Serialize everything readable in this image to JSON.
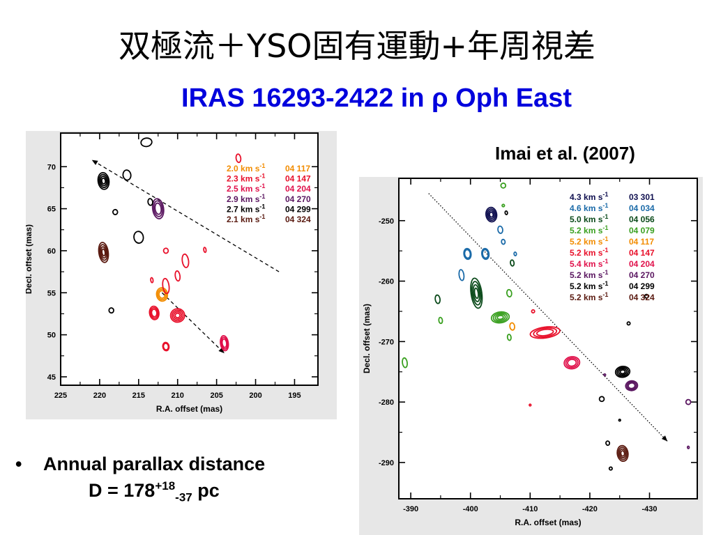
{
  "slide": {
    "title": "双極流＋YSO固有運動+年周視差",
    "subtitle": "IRAS 16293-2422 in ρ Oph East",
    "reference": "Imai et al. (2007)",
    "bullet_text": "Annual parallax distance",
    "formula": {
      "prefix": "D = 178",
      "sup": "+18",
      "sub": "-37",
      "suffix": " pc"
    },
    "bullet_symbol": "•"
  },
  "chart_data": [
    {
      "type": "scatter",
      "xlabel": "R.A. offset (mas)",
      "ylabel": "Decl. offset (mas)",
      "xlim": [
        225,
        192
      ],
      "ylim": [
        44,
        74
      ],
      "xticks": [
        225,
        220,
        215,
        210,
        205,
        200,
        195
      ],
      "yticks": [
        45,
        50,
        55,
        60,
        65,
        70
      ],
      "legend": [
        {
          "velocity": "2.0 km s",
          "sup": "-1",
          "id": "04 117",
          "color": "#f28c00"
        },
        {
          "velocity": "2.3 km s",
          "sup": "-1",
          "id": "04 147",
          "color": "#e8102a"
        },
        {
          "velocity": "2.5 km s",
          "sup": "-1",
          "id": "04 204",
          "color": "#e0104a"
        },
        {
          "velocity": "2.9 km s",
          "sup": "-1",
          "id": "04 270",
          "color": "#5a1660"
        },
        {
          "velocity": "2.7 km s",
          "sup": "-1",
          "id": "04 299",
          "color": "#000000"
        },
        {
          "velocity": "2.1 km s",
          "sup": "-1",
          "id": "04 324",
          "color": "#5a1a10"
        }
      ],
      "features": [
        {
          "x": 214,
          "y": 72.9,
          "color": "#000000",
          "rx": 0.7,
          "ry": 0.5,
          "n": 1
        },
        {
          "x": 219.5,
          "y": 68.3,
          "color": "#000000",
          "rx": 0.7,
          "ry": 1.0,
          "n": 4
        },
        {
          "x": 216.5,
          "y": 69.0,
          "color": "#000000",
          "rx": 0.5,
          "ry": 0.6,
          "n": 1
        },
        {
          "x": 218.0,
          "y": 64.6,
          "color": "#000000",
          "rx": 0.3,
          "ry": 0.3,
          "n": 1
        },
        {
          "x": 215.0,
          "y": 61.6,
          "color": "#000000",
          "rx": 0.6,
          "ry": 0.7,
          "n": 1
        },
        {
          "x": 218.5,
          "y": 52.9,
          "color": "#000000",
          "rx": 0.3,
          "ry": 0.3,
          "n": 1
        },
        {
          "x": 212.5,
          "y": 65.0,
          "color": "#5a1660",
          "rx": 0.7,
          "ry": 1.2,
          "n": 3
        },
        {
          "x": 213.5,
          "y": 65.8,
          "color": "#000000",
          "rx": 0.3,
          "ry": 0.4,
          "n": 1
        },
        {
          "x": 219.5,
          "y": 59.8,
          "color": "#5a1a10",
          "rx": 0.6,
          "ry": 1.2,
          "n": 4
        },
        {
          "x": 212.0,
          "y": 54.8,
          "color": "#f28c00",
          "rx": 0.7,
          "ry": 0.8,
          "n": 3
        },
        {
          "x": 211.5,
          "y": 55.8,
          "color": "#e8102a",
          "rx": 0.4,
          "ry": 0.9,
          "n": 1
        },
        {
          "x": 213.0,
          "y": 52.6,
          "color": "#e8102a",
          "rx": 0.6,
          "ry": 0.8,
          "n": 3
        },
        {
          "x": 210.0,
          "y": 52.3,
          "color": "#e8102a",
          "rx": 0.9,
          "ry": 0.8,
          "n": 4
        },
        {
          "x": 211.5,
          "y": 48.6,
          "color": "#e8102a",
          "rx": 0.4,
          "ry": 0.5,
          "n": 2
        },
        {
          "x": 209.0,
          "y": 58.8,
          "color": "#e8102a",
          "rx": 0.4,
          "ry": 0.8,
          "n": 1
        },
        {
          "x": 211.5,
          "y": 60.0,
          "color": "#e8102a",
          "rx": 0.3,
          "ry": 0.3,
          "n": 1
        },
        {
          "x": 210.0,
          "y": 57.0,
          "color": "#e8102a",
          "rx": 0.3,
          "ry": 0.6,
          "n": 1
        },
        {
          "x": 206.5,
          "y": 60.1,
          "color": "#e8102a",
          "rx": 0.15,
          "ry": 0.3,
          "n": 1
        },
        {
          "x": 213.3,
          "y": 56.5,
          "color": "#e8102a",
          "rx": 0.15,
          "ry": 0.3,
          "n": 1
        },
        {
          "x": 202.2,
          "y": 71.0,
          "color": "#e8102a",
          "rx": 0.3,
          "ry": 0.5,
          "n": 1
        },
        {
          "x": 204.0,
          "y": 49.0,
          "color": "#e0104a",
          "rx": 0.5,
          "ry": 0.9,
          "n": 3
        }
      ],
      "arrows": [
        {
          "from": [
            197,
            57.5
          ],
          "to": [
            221,
            70.8
          ]
        },
        {
          "from": [
            212,
            55.0
          ],
          "to": [
            204,
            47.8
          ]
        }
      ]
    },
    {
      "type": "scatter",
      "xlabel": "R.A. offset (mas)",
      "ylabel": "Decl. offset (mas)",
      "xlim": [
        -388,
        -438
      ],
      "ylim": [
        -296,
        -243
      ],
      "xticks": [
        -390,
        -400,
        -410,
        -420,
        -430
      ],
      "yticks": [
        -250,
        -260,
        -270,
        -280,
        -290
      ],
      "legend": [
        {
          "velocity": "4.3 km s",
          "sup": "-1",
          "id": "03 301",
          "color": "#101050"
        },
        {
          "velocity": "4.6 km s",
          "sup": "-1",
          "id": "04 034",
          "color": "#1a6aa8"
        },
        {
          "velocity": "5.0 km s",
          "sup": "-1",
          "id": "04 056",
          "color": "#0a4a1a"
        },
        {
          "velocity": "5.2 km s",
          "sup": "-1",
          "id": "04 079",
          "color": "#3aa020"
        },
        {
          "velocity": "5.2 km s",
          "sup": "-1",
          "id": "04 117",
          "color": "#f28c00"
        },
        {
          "velocity": "5.2 km s",
          "sup": "-1",
          "id": "04 147",
          "color": "#e8102a"
        },
        {
          "velocity": "5.4 km s",
          "sup": "-1",
          "id": "04 204",
          "color": "#e0104a"
        },
        {
          "velocity": "5.2 km s",
          "sup": "-1",
          "id": "04 270",
          "color": "#5a1660"
        },
        {
          "velocity": "5.2 km s",
          "sup": "-1",
          "id": "04 299",
          "color": "#000000"
        },
        {
          "velocity": "5.2 km s",
          "sup": "-1",
          "id": "04 324",
          "color": "#5a1a10"
        }
      ],
      "features": [
        {
          "x": -405.5,
          "y": -244.2,
          "color": "#3aa020",
          "rx": 0.4,
          "ry": 0.4,
          "n": 1
        },
        {
          "x": -405.5,
          "y": -247.5,
          "color": "#3aa020",
          "rx": 0.2,
          "ry": 0.2,
          "n": 1
        },
        {
          "x": -403.5,
          "y": -249.0,
          "color": "#101050",
          "rx": 0.9,
          "ry": 1.2,
          "n": 4
        },
        {
          "x": -406.0,
          "y": -248.7,
          "color": "#000000",
          "rx": 0.2,
          "ry": 0.3,
          "n": 1
        },
        {
          "x": -405.0,
          "y": -251.5,
          "color": "#1a6aa8",
          "rx": 0.4,
          "ry": 0.6,
          "n": 1
        },
        {
          "x": -405.5,
          "y": -253.5,
          "color": "#1a6aa8",
          "rx": 0.3,
          "ry": 0.4,
          "n": 1
        },
        {
          "x": -399.5,
          "y": -255.5,
          "color": "#1a6aa8",
          "rx": 0.6,
          "ry": 0.9,
          "n": 2
        },
        {
          "x": -402.5,
          "y": -255.5,
          "color": "#1a6aa8",
          "rx": 0.6,
          "ry": 0.9,
          "n": 2
        },
        {
          "x": -407.5,
          "y": -255.5,
          "color": "#1a6aa8",
          "rx": 0.2,
          "ry": 0.3,
          "n": 1
        },
        {
          "x": -398.5,
          "y": -259.0,
          "color": "#1a6aa8",
          "rx": 0.4,
          "ry": 0.9,
          "n": 1
        },
        {
          "x": -401.0,
          "y": -262.0,
          "color": "#0a4a1a",
          "rx": 0.9,
          "ry": 2.5,
          "n": 4
        },
        {
          "x": -407.0,
          "y": -257.0,
          "color": "#0a4a1a",
          "rx": 0.3,
          "ry": 0.5,
          "n": 1
        },
        {
          "x": -394.5,
          "y": -263.0,
          "color": "#0a4a1a",
          "rx": 0.4,
          "ry": 0.7,
          "n": 1
        },
        {
          "x": -389.0,
          "y": -273.5,
          "color": "#3aa020",
          "rx": 0.4,
          "ry": 0.8,
          "n": 1
        },
        {
          "x": -395.0,
          "y": -266.5,
          "color": "#3aa020",
          "rx": 0.3,
          "ry": 0.5,
          "n": 1
        },
        {
          "x": -405.0,
          "y": -266.0,
          "color": "#3aa020",
          "rx": 1.5,
          "ry": 0.9,
          "n": 4
        },
        {
          "x": -406.5,
          "y": -262.0,
          "color": "#3aa020",
          "rx": 0.4,
          "ry": 0.6,
          "n": 1
        },
        {
          "x": -406.5,
          "y": -269.3,
          "color": "#3aa020",
          "rx": 0.3,
          "ry": 0.5,
          "n": 1
        },
        {
          "x": -407.0,
          "y": -267.5,
          "color": "#f28c00",
          "rx": 0.4,
          "ry": 0.6,
          "n": 1
        },
        {
          "x": -412.5,
          "y": -268.5,
          "color": "#e8102a",
          "rx": 2.5,
          "ry": 0.9,
          "n": 3
        },
        {
          "x": -410.5,
          "y": -265.0,
          "color": "#e8102a",
          "rx": 0.25,
          "ry": 0.25,
          "n": 1
        },
        {
          "x": -417.0,
          "y": -273.5,
          "color": "#e0104a",
          "rx": 1.3,
          "ry": 1.0,
          "n": 3
        },
        {
          "x": -410.0,
          "y": -280.5,
          "color": "#e8102a",
          "rx": 0.15,
          "ry": 0.15,
          "n": 1
        },
        {
          "x": -425.5,
          "y": -275.0,
          "color": "#000000",
          "rx": 1.2,
          "ry": 0.9,
          "n": 4
        },
        {
          "x": -427.0,
          "y": -277.3,
          "color": "#5a1660",
          "rx": 1.0,
          "ry": 0.8,
          "n": 3
        },
        {
          "x": -429.5,
          "y": -262.5,
          "color": "#000000",
          "rx": 0.3,
          "ry": 0.3,
          "n": 1
        },
        {
          "x": -426.5,
          "y": -267.0,
          "color": "#000000",
          "rx": 0.25,
          "ry": 0.25,
          "n": 1
        },
        {
          "x": -422.0,
          "y": -279.5,
          "color": "#000000",
          "rx": 0.4,
          "ry": 0.4,
          "n": 1
        },
        {
          "x": -425.0,
          "y": -283.0,
          "color": "#000000",
          "rx": 0.15,
          "ry": 0.15,
          "n": 1
        },
        {
          "x": -423.0,
          "y": -286.8,
          "color": "#000000",
          "rx": 0.3,
          "ry": 0.35,
          "n": 1
        },
        {
          "x": -425.5,
          "y": -288.5,
          "color": "#5a1a10",
          "rx": 0.9,
          "ry": 1.3,
          "n": 4
        },
        {
          "x": -423.5,
          "y": -291.0,
          "color": "#000000",
          "rx": 0.25,
          "ry": 0.25,
          "n": 1
        },
        {
          "x": -436.5,
          "y": -280.0,
          "color": "#5a1660",
          "rx": 0.4,
          "ry": 0.4,
          "n": 1
        },
        {
          "x": -436.5,
          "y": -287.5,
          "color": "#5a1660",
          "rx": 0.15,
          "ry": 0.2,
          "n": 1
        },
        {
          "x": -422.5,
          "y": -275.5,
          "color": "#5a1660",
          "rx": 0.15,
          "ry": 0.15,
          "n": 1
        }
      ],
      "arrows": [
        {
          "from": [
            -393,
            -245.5
          ],
          "to": [
            -433,
            -286.5
          ]
        }
      ]
    }
  ]
}
